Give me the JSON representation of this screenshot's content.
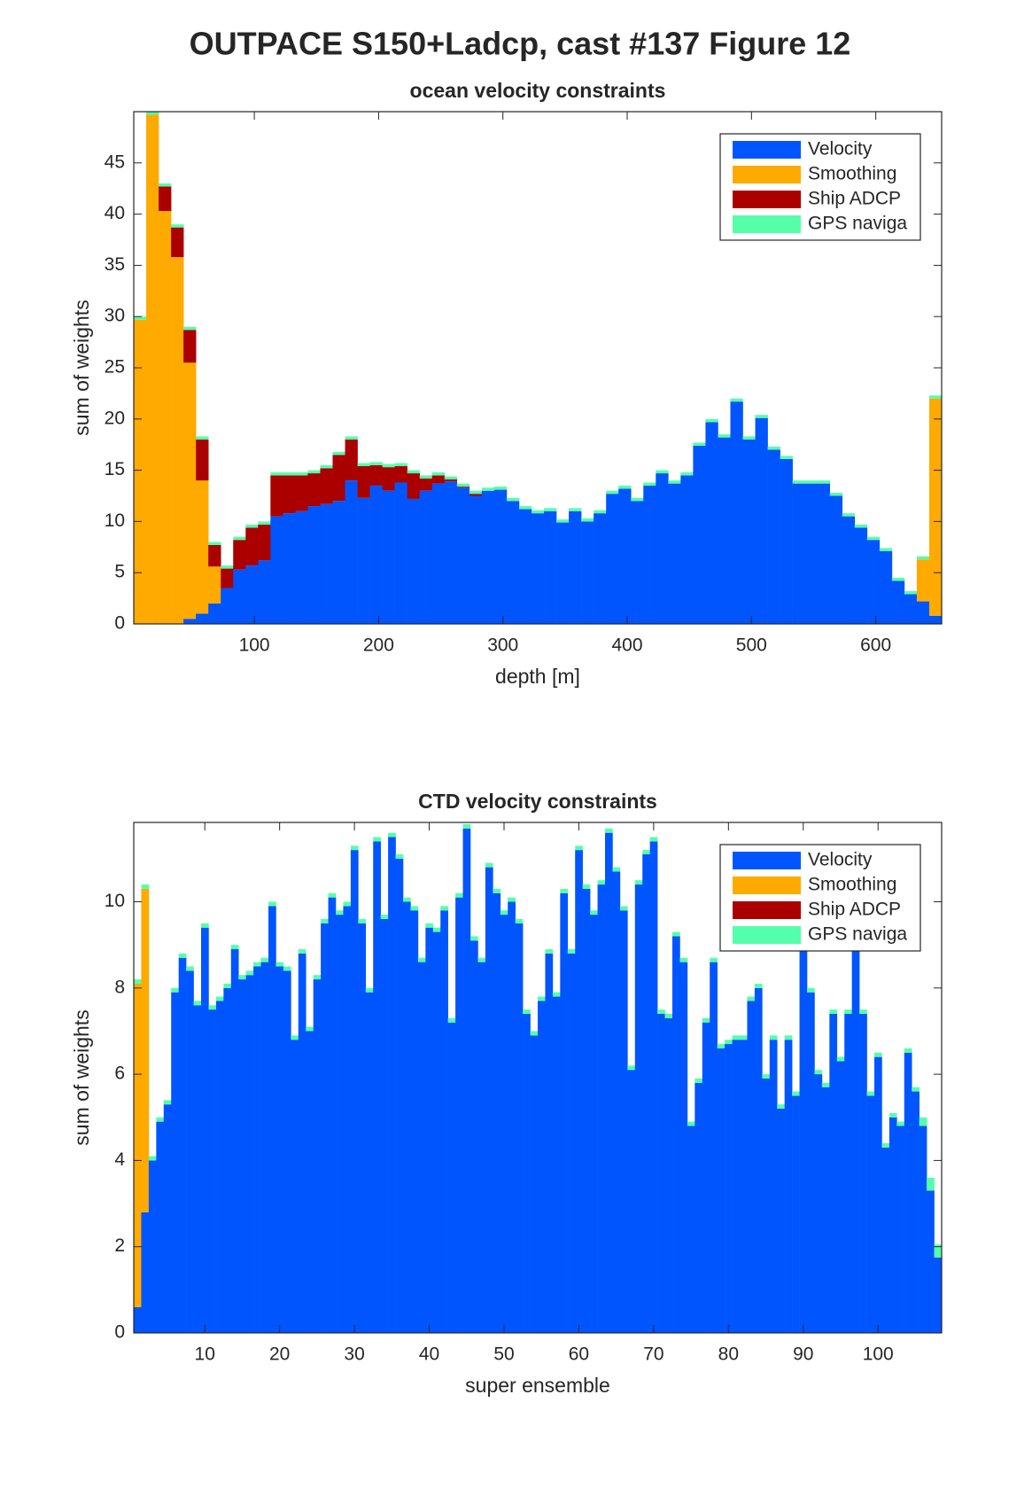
{
  "title": "OUTPACE S150+Ladcp, cast #137  Figure 12",
  "chart_data": [
    {
      "type": "bar",
      "stacked": true,
      "title": "ocean velocity constraints",
      "xlabel": "depth [m]",
      "ylabel": "sum of weights",
      "legend": "northeast",
      "x": [
        8,
        18,
        28,
        38,
        48,
        58,
        68,
        78,
        88,
        98,
        108,
        118,
        128,
        138,
        148,
        158,
        168,
        178,
        188,
        198,
        208,
        218,
        228,
        238,
        248,
        258,
        268,
        278,
        288,
        298,
        308,
        318,
        328,
        338,
        348,
        358,
        368,
        378,
        388,
        398,
        408,
        418,
        428,
        438,
        448,
        458,
        468,
        478,
        488,
        498,
        508,
        518,
        528,
        538,
        548,
        558,
        568,
        578,
        588,
        598,
        608,
        618,
        628,
        638,
        648
      ],
      "xlim": [
        3,
        653
      ],
      "xticks": [
        100,
        200,
        300,
        400,
        500,
        600
      ],
      "ylim": [
        0,
        50
      ],
      "yticks": [
        0,
        5,
        10,
        15,
        20,
        25,
        30,
        35,
        40,
        45
      ],
      "series": [
        {
          "name": "Velocity",
          "color": "#0055ff",
          "values": [
            0,
            0,
            0,
            0,
            0.5,
            1,
            2,
            3.5,
            5.3,
            5.7,
            6.2,
            10.5,
            10.8,
            11,
            11.5,
            11.7,
            12,
            14,
            12.3,
            13.5,
            13,
            13.8,
            12.2,
            13,
            13.7,
            13.9,
            13.3,
            12.5,
            13.0,
            13.1,
            12.0,
            11.2,
            10.8,
            11.0,
            9.9,
            11.0,
            10.0,
            10.8,
            12.7,
            13.2,
            12.0,
            13.5,
            14.7,
            13.7,
            14.5,
            17.4,
            19.7,
            18.2,
            21.7,
            18.0,
            20.1,
            17.0,
            16.1,
            13.7,
            13.7,
            13.7,
            12.5,
            10.5,
            9.4,
            8.2,
            7.1,
            4.2,
            2.9,
            2.2,
            0.8
          ]
        },
        {
          "name": "Smoothing",
          "color": "#ffaa00",
          "values": [
            29.7,
            49.7,
            40.3,
            35.8,
            25,
            13,
            3.6,
            0,
            0,
            0,
            0,
            0,
            0,
            0,
            0,
            0,
            0,
            0,
            0,
            0,
            0,
            0,
            0,
            0,
            0,
            0,
            0,
            0,
            0,
            0,
            0,
            0,
            0,
            0,
            0,
            0,
            0,
            0,
            0,
            0,
            0,
            0,
            0,
            0,
            0,
            0,
            0,
            0,
            0,
            0,
            0,
            0,
            0,
            0,
            0,
            0,
            0,
            0,
            0,
            0,
            0,
            0,
            0,
            4.1,
            21.2
          ]
        },
        {
          "name": "Ship ADCP",
          "color": "#aa0000",
          "values": [
            0,
            0,
            2.4,
            2.9,
            3.2,
            4,
            2.1,
            1.9,
            2.9,
            3.7,
            3.5,
            4,
            3.7,
            3.5,
            3.2,
            3.5,
            4.5,
            4,
            3.1,
            2,
            2.3,
            1.6,
            2.5,
            1.2,
            0.8,
            0.2,
            0.1,
            0.2,
            0,
            0,
            0,
            0,
            0,
            0,
            0,
            0,
            0,
            0,
            0,
            0,
            0,
            0,
            0,
            0,
            0,
            0,
            0,
            0,
            0,
            0,
            0,
            0,
            0,
            0,
            0,
            0,
            0,
            0,
            0,
            0,
            0,
            0,
            0,
            0,
            0
          ]
        },
        {
          "name": "GPS naviga",
          "color": "#55ffaa",
          "values": [
            0.3,
            0.3,
            0.3,
            0.3,
            0.3,
            0.3,
            0.3,
            0.3,
            0.3,
            0.3,
            0.3,
            0.3,
            0.3,
            0.3,
            0.3,
            0.3,
            0.3,
            0.3,
            0.3,
            0.3,
            0.3,
            0.3,
            0.3,
            0.3,
            0.3,
            0.3,
            0.3,
            0.3,
            0.3,
            0.3,
            0.3,
            0.3,
            0.3,
            0.3,
            0.3,
            0.3,
            0.3,
            0.3,
            0.3,
            0.3,
            0.3,
            0.3,
            0.3,
            0.3,
            0.3,
            0.3,
            0.3,
            0.3,
            0.3,
            0.3,
            0.3,
            0.3,
            0.3,
            0.3,
            0.3,
            0.3,
            0.3,
            0.3,
            0.3,
            0.3,
            0.3,
            0.3,
            0.3,
            0.3,
            0.3
          ]
        }
      ]
    },
    {
      "type": "bar",
      "stacked": true,
      "title": "CTD velocity constraints",
      "xlabel": "super ensemble",
      "ylabel": "sum of weights",
      "legend": "northeast",
      "x": [
        1,
        2,
        3,
        4,
        5,
        6,
        7,
        8,
        9,
        10,
        11,
        12,
        13,
        14,
        15,
        16,
        17,
        18,
        19,
        20,
        21,
        22,
        23,
        24,
        25,
        26,
        27,
        28,
        29,
        30,
        31,
        32,
        33,
        34,
        35,
        36,
        37,
        38,
        39,
        40,
        41,
        42,
        43,
        44,
        45,
        46,
        47,
        48,
        49,
        50,
        51,
        52,
        53,
        54,
        55,
        56,
        57,
        58,
        59,
        60,
        61,
        62,
        63,
        64,
        65,
        66,
        67,
        68,
        69,
        70,
        71,
        72,
        73,
        74,
        75,
        76,
        77,
        78,
        79,
        80,
        81,
        82,
        83,
        84,
        85,
        86,
        87,
        88,
        89,
        90,
        91,
        92,
        93,
        94,
        95,
        96,
        97,
        98,
        99,
        100,
        101,
        102,
        103,
        104,
        105,
        106,
        107,
        108
      ],
      "xlim": [
        0.5,
        108.5
      ],
      "xticks": [
        10,
        20,
        30,
        40,
        50,
        60,
        70,
        80,
        90,
        100
      ],
      "ylim": [
        0,
        11.84
      ],
      "yticks": [
        0,
        2,
        4,
        6,
        8,
        10
      ],
      "series": [
        {
          "name": "Velocity",
          "color": "#0055ff",
          "values": [
            0.6,
            2.8,
            4.0,
            4.9,
            5.3,
            7.9,
            8.7,
            8.4,
            7.6,
            9.4,
            7.5,
            7.7,
            8.0,
            8.9,
            8.2,
            8.3,
            8.5,
            8.6,
            9.9,
            8.5,
            8.4,
            6.8,
            8.8,
            7.0,
            8.2,
            9.5,
            10.1,
            9.7,
            9.9,
            11.2,
            9.5,
            7.9,
            11.4,
            9.6,
            11.5,
            11.0,
            10.0,
            9.8,
            8.6,
            9.4,
            9.3,
            9.8,
            7.2,
            10.1,
            11.7,
            9.1,
            8.6,
            10.8,
            10.2,
            9.7,
            10.0,
            9.5,
            7.4,
            6.9,
            7.7,
            8.8,
            7.8,
            10.2,
            8.8,
            11.2,
            10.3,
            9.7,
            10.4,
            11.6,
            10.7,
            9.8,
            6.1,
            10.4,
            11.1,
            11.4,
            7.4,
            7.3,
            9.2,
            8.6,
            4.8,
            5.8,
            7.2,
            8.6,
            6.6,
            6.7,
            6.8,
            6.8,
            7.7,
            8.0,
            5.9,
            6.8,
            5.2,
            6.8,
            5.5,
            9.2,
            7.9,
            6.0,
            5.7,
            7.4,
            6.3,
            7.4,
            9.2,
            7.4,
            5.5,
            6.4,
            4.3,
            5.0,
            4.8,
            6.5,
            5.6,
            4.8,
            3.3,
            1.75
          ]
        },
        {
          "name": "Smoothing",
          "color": "#ffaa00",
          "values": [
            7.5,
            7.5,
            0,
            0,
            0,
            0,
            0,
            0,
            0,
            0,
            0,
            0,
            0,
            0,
            0,
            0,
            0,
            0,
            0,
            0,
            0,
            0,
            0,
            0,
            0,
            0,
            0,
            0,
            0,
            0,
            0,
            0,
            0,
            0,
            0,
            0,
            0,
            0,
            0,
            0,
            0,
            0,
            0,
            0,
            0,
            0,
            0,
            0,
            0,
            0,
            0,
            0,
            0,
            0,
            0,
            0,
            0,
            0,
            0,
            0,
            0,
            0,
            0,
            0,
            0,
            0,
            0,
            0,
            0,
            0,
            0,
            0,
            0,
            0,
            0,
            0,
            0,
            0,
            0,
            0,
            0,
            0,
            0,
            0,
            0,
            0,
            0,
            0,
            0,
            0,
            0,
            0,
            0,
            0,
            0,
            0,
            0,
            0,
            0,
            0,
            0,
            0,
            0,
            0,
            0,
            0,
            0,
            0
          ]
        },
        {
          "name": "Ship ADCP",
          "color": "#aa0000",
          "values": [
            0,
            0,
            0,
            0,
            0,
            0,
            0,
            0,
            0,
            0,
            0,
            0,
            0,
            0,
            0,
            0,
            0,
            0,
            0,
            0,
            0,
            0,
            0,
            0,
            0,
            0,
            0,
            0,
            0,
            0,
            0,
            0,
            0,
            0,
            0,
            0,
            0,
            0,
            0,
            0,
            0,
            0,
            0,
            0,
            0,
            0,
            0,
            0,
            0,
            0,
            0,
            0,
            0,
            0,
            0,
            0,
            0,
            0,
            0,
            0,
            0,
            0,
            0,
            0,
            0,
            0,
            0,
            0,
            0,
            0,
            0,
            0,
            0,
            0,
            0,
            0,
            0,
            0,
            0,
            0,
            0,
            0,
            0,
            0,
            0,
            0,
            0,
            0,
            0,
            0,
            0,
            0,
            0,
            0,
            0,
            0,
            0,
            0,
            0,
            0,
            0,
            0,
            0,
            0,
            0,
            0,
            0,
            0
          ]
        },
        {
          "name": "GPS naviga",
          "color": "#55ffaa",
          "values": [
            0.1,
            0.1,
            0.1,
            0.1,
            0.1,
            0.1,
            0.1,
            0.1,
            0.1,
            0.1,
            0.1,
            0.1,
            0.1,
            0.1,
            0.1,
            0.1,
            0.1,
            0.1,
            0.1,
            0.1,
            0.1,
            0.1,
            0.1,
            0.1,
            0.1,
            0.1,
            0.1,
            0.1,
            0.1,
            0.1,
            0.1,
            0.1,
            0.1,
            0.1,
            0.1,
            0.1,
            0.1,
            0.1,
            0.1,
            0.1,
            0.1,
            0.1,
            0.1,
            0.1,
            0.1,
            0.1,
            0.1,
            0.1,
            0.1,
            0.1,
            0.1,
            0.1,
            0.1,
            0.1,
            0.1,
            0.1,
            0.1,
            0.1,
            0.1,
            0.1,
            0.1,
            0.1,
            0.1,
            0.1,
            0.1,
            0.1,
            0.1,
            0.1,
            0.1,
            0.1,
            0.1,
            0.1,
            0.1,
            0.1,
            0.1,
            0.1,
            0.1,
            0.1,
            0.1,
            0.1,
            0.1,
            0.1,
            0.1,
            0.1,
            0.1,
            0.1,
            0.1,
            0.1,
            0.1,
            0.1,
            0.1,
            0.1,
            0.1,
            0.1,
            0.1,
            0.1,
            0.1,
            0.1,
            0.1,
            0.1,
            0.1,
            0.1,
            0.1,
            0.1,
            0.1,
            0.2,
            0.3,
            0.3
          ]
        }
      ]
    }
  ]
}
